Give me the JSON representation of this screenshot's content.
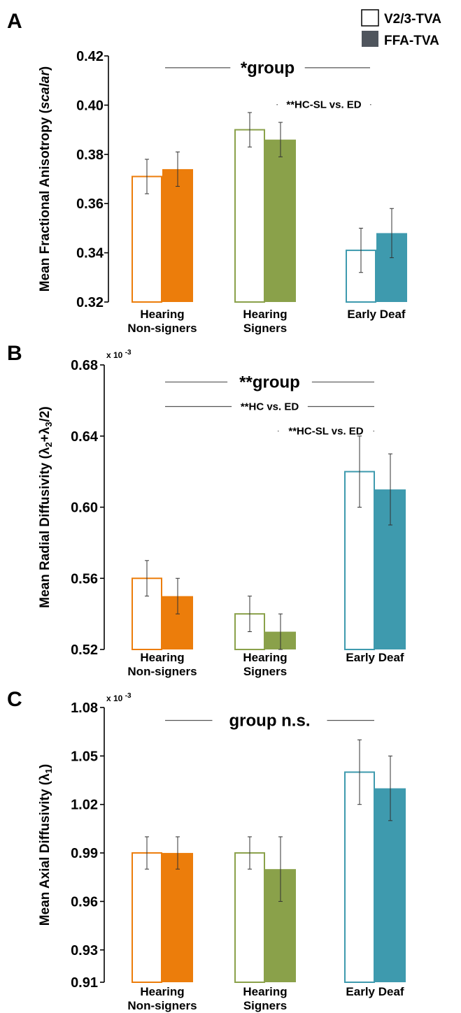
{
  "legend": {
    "items": [
      {
        "label": "V2/3-TVA",
        "style": "outline"
      },
      {
        "label": "FFA-TVA",
        "style": "filled",
        "color": "#4f555d"
      }
    ]
  },
  "group_colors": [
    "#ec7d0b",
    "#8aa14a",
    "#3e9aae"
  ],
  "chart_data": [
    {
      "panel_label": "A",
      "type": "bar",
      "categories": [
        [
          "Hearing",
          "Non-signers"
        ],
        [
          "Hearing",
          "Signers"
        ],
        [
          "Early Deaf"
        ]
      ],
      "ylabel": "Mean Fractional Anisotropy (scalar)",
      "ylabel_parts": [
        {
          "text": "Mean Fractional Anisotropy (",
          "italic": false
        },
        {
          "text": "scalar",
          "italic": true
        },
        {
          "text": ")",
          "italic": false
        }
      ],
      "ylim": [
        0.32,
        0.42
      ],
      "yticks": [
        "0.32",
        "0.34",
        "0.36",
        "0.38",
        "0.40",
        "0.42"
      ],
      "scale_note": "",
      "series": [
        {
          "name": "V2/3-TVA",
          "values": [
            0.371,
            0.39,
            0.341
          ],
          "errors": [
            0.007,
            0.007,
            0.009
          ]
        },
        {
          "name": "FFA-TVA",
          "values": [
            0.374,
            0.386,
            0.348
          ],
          "errors": [
            0.007,
            0.007,
            0.01
          ]
        }
      ],
      "annotations": [
        {
          "text": "*group",
          "size": "large",
          "value": 0.4152,
          "from": 0,
          "to": 2
        },
        {
          "text": "**HC-SL vs. ED",
          "size": "small",
          "value": 0.4002,
          "from": 1,
          "to": 2
        }
      ]
    },
    {
      "panel_label": "B",
      "type": "bar",
      "categories": [
        [
          "Hearing",
          "Non-signers"
        ],
        [
          "Hearing",
          "Signers"
        ],
        [
          "Early Deaf"
        ]
      ],
      "ylabel": "Mean Radial Diffusivity (λ2+λ3/2)",
      "ylabel_parts": [
        {
          "text": "Mean Radial Diffusivity (λ",
          "sub": false
        },
        {
          "text": "2",
          "sub": true
        },
        {
          "text": "+λ",
          "sub": false
        },
        {
          "text": "3",
          "sub": true
        },
        {
          "text": "/2)",
          "sub": false
        }
      ],
      "ylim": [
        0.52,
        0.68
      ],
      "yticks": [
        "0.52",
        "0.56",
        "0.60",
        "0.64",
        "0.68"
      ],
      "scale_note": "x 10 -3",
      "series": [
        {
          "name": "V2/3-TVA",
          "values": [
            0.56,
            0.54,
            0.62
          ],
          "errors": [
            0.01,
            0.01,
            0.02
          ]
        },
        {
          "name": "FFA-TVA",
          "values": [
            0.55,
            0.53,
            0.61
          ],
          "errors": [
            0.01,
            0.01,
            0.02
          ]
        }
      ],
      "annotations": [
        {
          "text": "**group",
          "size": "large",
          "value": 0.6704,
          "from": 0,
          "to": 2
        },
        {
          "text": "**HC vs. ED",
          "size": "small",
          "value": 0.6566,
          "from": 0,
          "to": 2
        },
        {
          "text": "**HC-SL vs. ED",
          "size": "small",
          "value": 0.6428,
          "from": 1,
          "to": 2
        }
      ]
    },
    {
      "panel_label": "C",
      "type": "bar",
      "categories": [
        [
          "Hearing",
          "Non-signers"
        ],
        [
          "Hearing",
          "Signers"
        ],
        [
          "Early Deaf"
        ]
      ],
      "ylabel": "Mean Axial Diffusivity (λ1)",
      "ylabel_parts": [
        {
          "text": "Mean Axial Diffusivity (λ",
          "sub": false
        },
        {
          "text": "1",
          "sub": true
        },
        {
          "text": ")",
          "sub": false
        }
      ],
      "ylim": [
        0.91,
        1.08
      ],
      "yticks": [
        "0.91",
        "0.93",
        "0.96",
        "0.99",
        "1.02",
        "1.05",
        "1.08"
      ],
      "scale_note": "x 10 -3",
      "series": [
        {
          "name": "V2/3-TVA",
          "values": [
            0.99,
            0.99,
            1.04
          ],
          "errors": [
            0.01,
            0.01,
            0.02
          ]
        },
        {
          "name": "FFA-TVA",
          "values": [
            0.99,
            0.98,
            1.03
          ],
          "errors": [
            0.01,
            0.02,
            0.02
          ]
        }
      ],
      "annotations": [
        {
          "text": "group n.s.",
          "size": "large",
          "value": 1.072,
          "from": 0,
          "to": 2
        }
      ]
    }
  ]
}
